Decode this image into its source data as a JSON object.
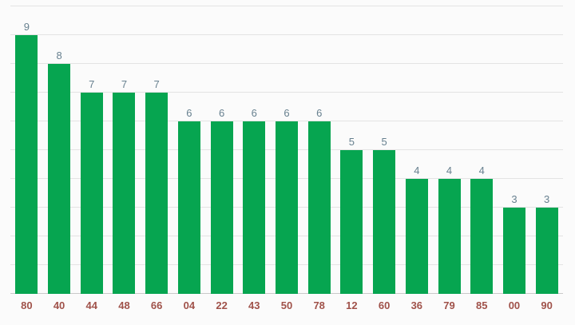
{
  "chart_data": {
    "type": "bar",
    "title": "",
    "xlabel": "",
    "ylabel": "",
    "categories": [
      "80",
      "40",
      "44",
      "48",
      "66",
      "04",
      "22",
      "43",
      "50",
      "78",
      "12",
      "60",
      "36",
      "79",
      "85",
      "00",
      "90"
    ],
    "values": [
      9,
      8,
      7,
      7,
      7,
      6,
      6,
      6,
      6,
      6,
      5,
      5,
      4,
      4,
      4,
      3,
      3
    ],
    "ylim": [
      0,
      10
    ],
    "grid_step": 1,
    "grid": true,
    "legend_position": "none",
    "value_labels_shown": true,
    "colors": {
      "bar": "#06a550",
      "value_label": "#67808f",
      "category_label": "#a0524a",
      "gridline": "#e3e3e3",
      "baseline": "#c9c9c9",
      "background": "#fbfbfb"
    }
  }
}
